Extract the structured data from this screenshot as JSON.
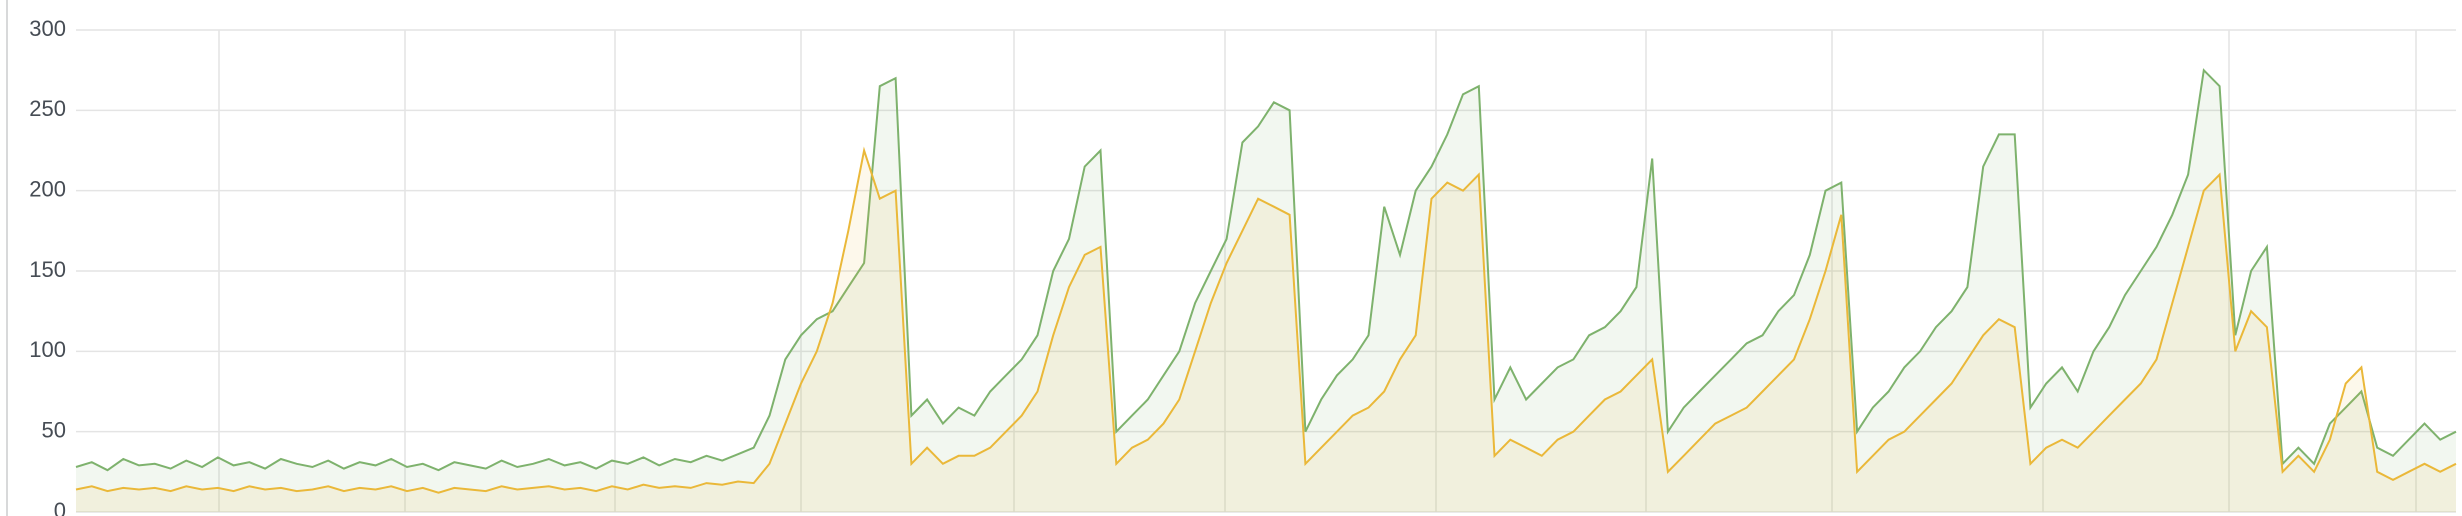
{
  "chart_data": {
    "type": "area",
    "ylim": [
      0,
      300
    ],
    "yticks": [
      0,
      50,
      100,
      150,
      200,
      250,
      300
    ],
    "grid": true,
    "series": [
      {
        "color": "#7eb26d",
        "values": [
          28,
          31,
          26,
          33,
          29,
          30,
          27,
          32,
          28,
          34,
          29,
          31,
          27,
          33,
          30,
          28,
          32,
          27,
          31,
          29,
          33,
          28,
          30,
          26,
          31,
          29,
          27,
          32,
          28,
          30,
          33,
          29,
          31,
          27,
          32,
          30,
          34,
          29,
          33,
          31,
          35,
          32,
          36,
          40,
          60,
          95,
          110,
          120,
          125,
          140,
          155,
          265,
          270,
          60,
          70,
          55,
          65,
          60,
          75,
          85,
          95,
          110,
          150,
          170,
          215,
          225,
          50,
          60,
          70,
          85,
          100,
          130,
          150,
          170,
          230,
          240,
          255,
          250,
          50,
          70,
          85,
          95,
          110,
          190,
          160,
          200,
          215,
          235,
          260,
          265,
          70,
          90,
          70,
          80,
          90,
          95,
          110,
          115,
          125,
          140,
          220,
          50,
          65,
          75,
          85,
          95,
          105,
          110,
          125,
          135,
          160,
          200,
          205,
          50,
          65,
          75,
          90,
          100,
          115,
          125,
          140,
          215,
          235,
          235,
          65,
          80,
          90,
          75,
          100,
          115,
          135,
          150,
          165,
          185,
          210,
          275,
          265,
          110,
          150,
          165,
          30,
          40,
          30,
          55,
          65,
          75,
          40,
          35,
          45,
          55,
          45,
          50
        ]
      },
      {
        "color": "#eab839",
        "values": [
          14,
          16,
          13,
          15,
          14,
          15,
          13,
          16,
          14,
          15,
          13,
          16,
          14,
          15,
          13,
          14,
          16,
          13,
          15,
          14,
          16,
          13,
          15,
          12,
          15,
          14,
          13,
          16,
          14,
          15,
          16,
          14,
          15,
          13,
          16,
          14,
          17,
          15,
          16,
          15,
          18,
          17,
          19,
          18,
          30,
          55,
          80,
          100,
          130,
          175,
          225,
          195,
          200,
          30,
          40,
          30,
          35,
          35,
          40,
          50,
          60,
          75,
          110,
          140,
          160,
          165,
          30,
          40,
          45,
          55,
          70,
          100,
          130,
          155,
          175,
          195,
          190,
          185,
          30,
          40,
          50,
          60,
          65,
          75,
          95,
          110,
          195,
          205,
          200,
          210,
          35,
          45,
          40,
          35,
          45,
          50,
          60,
          70,
          75,
          85,
          95,
          25,
          35,
          45,
          55,
          60,
          65,
          75,
          85,
          95,
          120,
          150,
          185,
          25,
          35,
          45,
          50,
          60,
          70,
          80,
          95,
          110,
          120,
          115,
          30,
          40,
          45,
          40,
          50,
          60,
          70,
          80,
          95,
          130,
          165,
          200,
          210,
          100,
          125,
          115,
          25,
          35,
          25,
          45,
          80,
          90,
          25,
          20,
          25,
          30,
          25,
          30
        ]
      }
    ]
  }
}
